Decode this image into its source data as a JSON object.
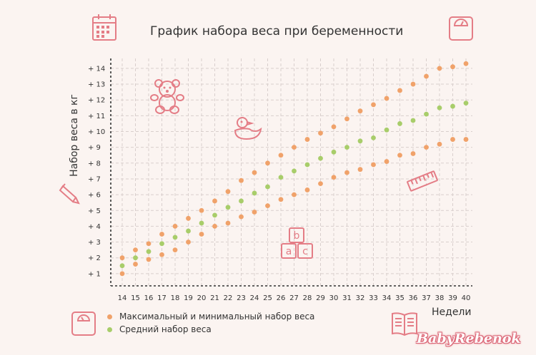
{
  "brand": "BabyRebenok",
  "colors": {
    "max_min": "#f0a26a",
    "avg": "#a8cd6a",
    "icons": "#e47d86",
    "grid": "#d9cfcd",
    "axis": "#333333"
  },
  "icons": [
    "calendar-icon",
    "scale-icon",
    "teddy-bear-icon",
    "duck-icon",
    "pencil-icon",
    "ruler-icon",
    "abc-blocks-icon",
    "bathroom-scale-icon",
    "book-icon"
  ],
  "chart_data": {
    "type": "scatter",
    "title": "График набора веса при беременности",
    "xlabel": "Недели",
    "ylabel": "Набор веса в кг",
    "xlim": [
      14,
      40
    ],
    "ylim": [
      0,
      14
    ],
    "x": [
      14,
      15,
      16,
      17,
      18,
      19,
      20,
      21,
      22,
      23,
      24,
      25,
      26,
      27,
      28,
      29,
      30,
      31,
      32,
      33,
      34,
      35,
      36,
      37,
      38,
      39,
      40
    ],
    "x_tick_labels": [
      "14",
      "15",
      "16",
      "17",
      "18",
      "19",
      "20",
      "21",
      "22",
      "23",
      "24",
      "25",
      "26",
      "27",
      "28",
      "29",
      "30",
      "31",
      "32",
      "33",
      "34",
      "35",
      "36",
      "37",
      "38",
      "39",
      "40"
    ],
    "y_ticks": [
      1,
      2,
      3,
      4,
      5,
      6,
      7,
      8,
      9,
      10,
      11,
      12,
      13,
      14
    ],
    "y_tick_labels": [
      "+ 1",
      "+ 2",
      "+ 3",
      "+ 4",
      "+ 5",
      "+ 6",
      "+ 7",
      "+ 8",
      "+ 9",
      "+ 10",
      "+ 11",
      "+ 12",
      "+ 13",
      "+ 14"
    ],
    "grid": true,
    "legend_position": "bottom-left",
    "series": [
      {
        "name": "Максимальный и минимальный набор веса",
        "color": "#f0a26a",
        "values": [
          2.0,
          2.5,
          2.9,
          3.5,
          4.0,
          4.5,
          5.0,
          5.6,
          6.2,
          6.9,
          7.4,
          8.0,
          8.5,
          9.0,
          9.5,
          9.9,
          10.3,
          10.8,
          11.3,
          11.7,
          12.1,
          12.6,
          13.0,
          13.5,
          14.0,
          14.1,
          14.3
        ]
      },
      {
        "name": "Максимальный и минимальный набор веса",
        "color": "#f0a26a",
        "legend": false,
        "values": [
          1.0,
          1.6,
          1.9,
          2.2,
          2.5,
          3.0,
          3.5,
          4.0,
          4.2,
          4.6,
          4.9,
          5.3,
          5.7,
          6.0,
          6.3,
          6.7,
          7.1,
          7.4,
          7.6,
          7.9,
          8.1,
          8.5,
          8.6,
          9.0,
          9.2,
          9.5,
          9.5
        ]
      },
      {
        "name": "Средний набор веса",
        "color": "#a8cd6a",
        "values": [
          1.5,
          2.0,
          2.4,
          2.9,
          3.3,
          3.7,
          4.2,
          4.7,
          5.2,
          5.6,
          6.1,
          6.5,
          7.1,
          7.5,
          7.9,
          8.3,
          8.7,
          9.0,
          9.4,
          9.6,
          10.1,
          10.5,
          10.7,
          11.1,
          11.5,
          11.6,
          11.8
        ]
      }
    ]
  }
}
